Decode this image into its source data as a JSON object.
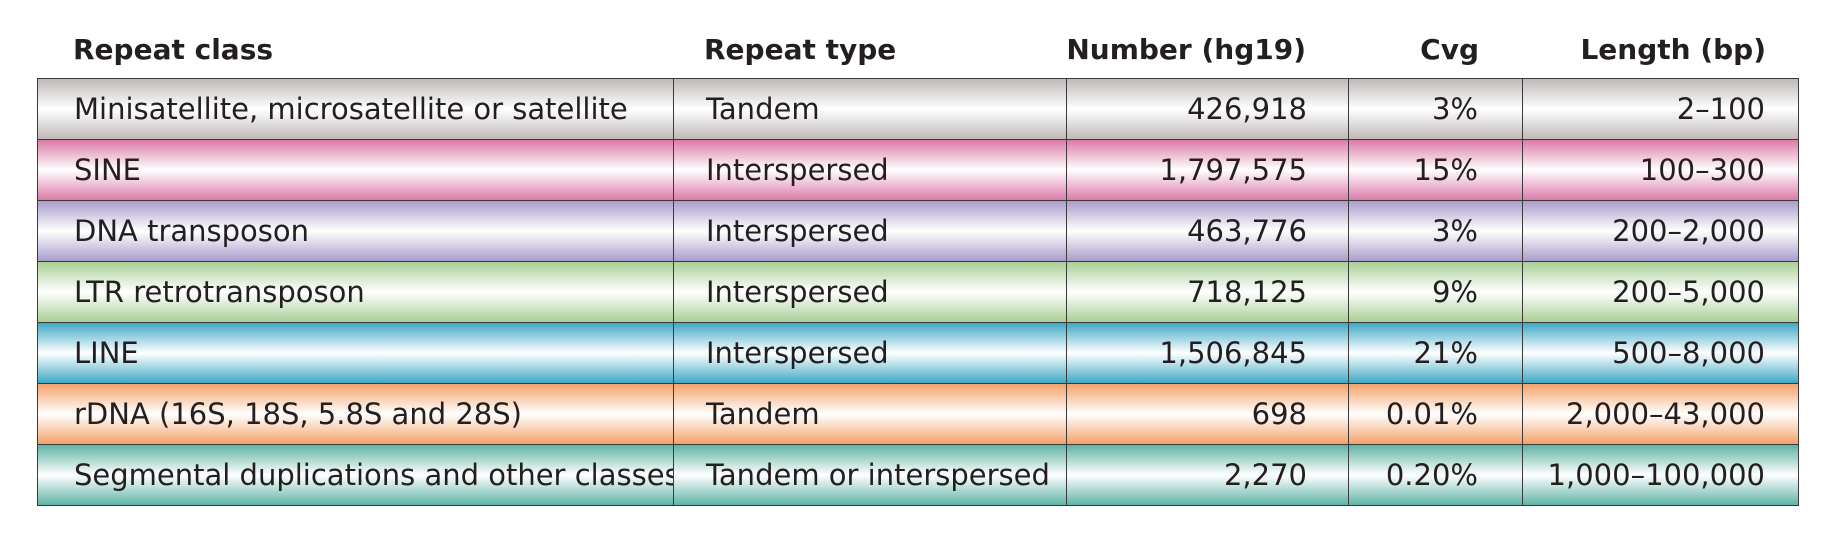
{
  "columns": [
    "Repeat class",
    "Repeat type",
    "Number (hg19)",
    "Cvg",
    "Length (bp)"
  ],
  "rows": [
    {
      "repeat_class": "Minisatellite, microsatellite or satellite",
      "repeat_type": "Tandem",
      "number": "426,918",
      "cvg": "3%",
      "length": "2–100",
      "color": "#bfb9b9"
    },
    {
      "repeat_class": "SINE",
      "repeat_type": "Interspersed",
      "number": "1,797,575",
      "cvg": "15%",
      "length": "100–300",
      "color": "#dc7aa9"
    },
    {
      "repeat_class": "DNA transposon",
      "repeat_type": "Interspersed",
      "number": "463,776",
      "cvg": "3%",
      "length": "200–2,000",
      "color": "#a99dcb"
    },
    {
      "repeat_class": "LTR retrotransposon",
      "repeat_type": "Interspersed",
      "number": "718,125",
      "cvg": "9%",
      "length": "200–5,000",
      "color": "#a9cf96"
    },
    {
      "repeat_class": "LINE",
      "repeat_type": "Interspersed",
      "number": "1,506,845",
      "cvg": "21%",
      "length": "500–8,000",
      "color": "#3fa9c6"
    },
    {
      "repeat_class": "rDNA (16S, 18S, 5.8S and 28S)",
      "repeat_type": "Tandem",
      "number": "698",
      "cvg": "0.01%",
      "length": "2,000–43,000",
      "color": "#f4a26a"
    },
    {
      "repeat_class": "Segmental duplications and other classes",
      "repeat_type": "Tandem or interspersed",
      "number": "2,270",
      "cvg": "0.20%",
      "length": "1,000–100,000",
      "color": "#5fb3a5"
    }
  ]
}
